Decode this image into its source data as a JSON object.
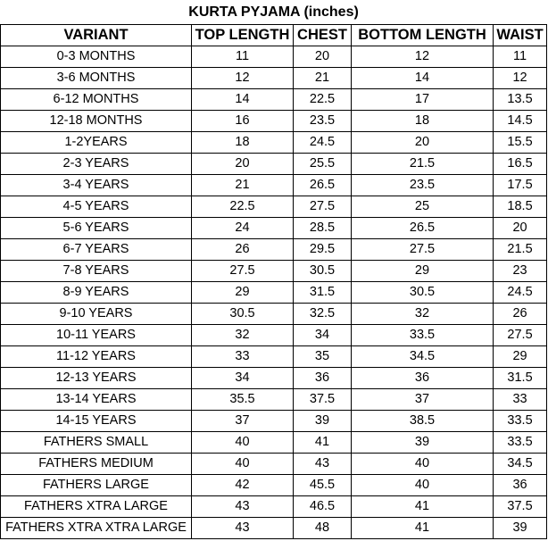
{
  "title": "KURTA PYJAMA (inches)",
  "columns": [
    "VARIANT",
    "TOP LENGTH",
    "CHEST",
    "BOTTOM LENGTH",
    "WAIST"
  ],
  "rows": [
    [
      "0-3 MONTHS",
      11,
      20,
      12,
      11
    ],
    [
      "3-6 MONTHS",
      12,
      21,
      14,
      12
    ],
    [
      "6-12 MONTHS",
      14,
      22.5,
      17,
      13.5
    ],
    [
      "12-18 MONTHS",
      16,
      23.5,
      18,
      14.5
    ],
    [
      "1-2YEARS",
      18,
      24.5,
      20,
      15.5
    ],
    [
      "2-3 YEARS",
      20,
      25.5,
      21.5,
      16.5
    ],
    [
      "3-4 YEARS",
      21,
      26.5,
      23.5,
      17.5
    ],
    [
      "4-5 YEARS",
      22.5,
      27.5,
      25,
      18.5
    ],
    [
      "5-6 YEARS",
      24,
      28.5,
      26.5,
      20
    ],
    [
      "6-7 YEARS",
      26,
      29.5,
      27.5,
      21.5
    ],
    [
      "7-8 YEARS",
      27.5,
      30.5,
      29,
      23
    ],
    [
      "8-9 YEARS",
      29,
      31.5,
      30.5,
      24.5
    ],
    [
      "9-10 YEARS",
      30.5,
      32.5,
      32,
      26
    ],
    [
      "10-11 YEARS",
      32,
      34,
      33.5,
      27.5
    ],
    [
      "11-12 YEARS",
      33,
      35,
      34.5,
      29
    ],
    [
      "12-13 YEARS",
      34,
      36,
      36,
      31.5
    ],
    [
      "13-14 YEARS",
      35.5,
      37.5,
      37,
      33
    ],
    [
      "14-15 YEARS",
      37,
      39,
      38.5,
      33.5
    ],
    [
      "FATHERS SMALL",
      40,
      41,
      39,
      33.5
    ],
    [
      "FATHERS MEDIUM",
      40,
      43,
      40,
      34.5
    ],
    [
      "FATHERS LARGE",
      42,
      45.5,
      40,
      36
    ],
    [
      "FATHERS XTRA LARGE",
      43,
      46.5,
      41,
      37.5
    ],
    [
      "FATHERS XTRA XTRA LARGE",
      43,
      48,
      41,
      39
    ]
  ]
}
